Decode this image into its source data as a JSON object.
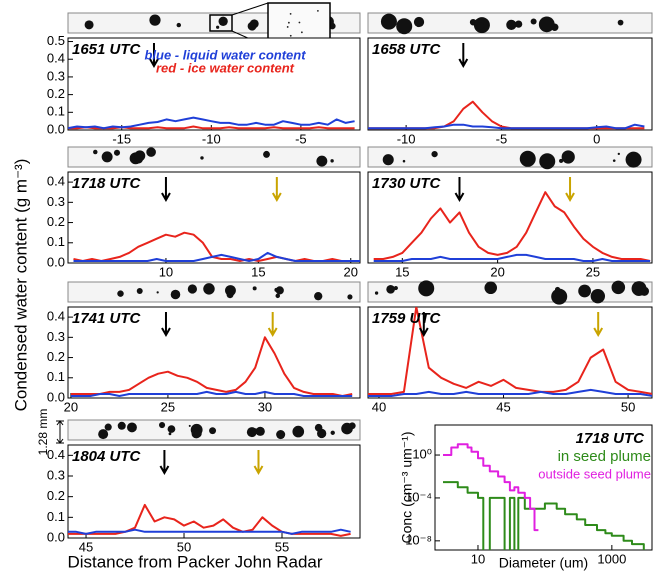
{
  "y_label": "Condensed water content (g m⁻³)",
  "x_label": "Distance from Packer John Radar",
  "scale_label": "1.28 mm",
  "chart_data": [
    {
      "type": "line",
      "title": "1651 UTC",
      "xlim": [
        -18,
        -1.7
      ],
      "ylim": [
        0,
        0.52
      ],
      "xticks": [
        -15,
        -10,
        -5
      ],
      "yticks": [
        {
          "value": 0,
          "label": "0.0"
        },
        0.1,
        0.2,
        0.3,
        0.4,
        0.5
      ],
      "annotations": [
        {
          "text": "blue - liquid water content",
          "color": "#1f3fd8"
        },
        {
          "text": "red  -  ice water content",
          "color": "#e8241c"
        }
      ],
      "markers": [
        {
          "x": -13.2,
          "color": "#000000"
        }
      ],
      "x": [
        -18,
        -17.5,
        -17,
        -16.5,
        -16,
        -15.5,
        -15,
        -14.5,
        -14,
        -13.5,
        -13,
        -12.5,
        -12,
        -11.5,
        -11,
        -10.5,
        -10,
        -9.5,
        -9,
        -8.5,
        -8,
        -7.5,
        -7,
        -6.5,
        -6,
        -5.5,
        -5,
        -4.5,
        -4,
        -3.5,
        -3,
        -2.5,
        -2
      ],
      "series": [
        {
          "color": "#e8241c",
          "values": [
            0.01,
            0.01,
            0.015,
            0.01,
            0.01,
            0.01,
            0.015,
            0.01,
            0.01,
            0.01,
            0.015,
            0.01,
            0.01,
            0.01,
            0.02,
            0.01,
            0.01,
            0.01,
            0.015,
            0.01,
            0.01,
            0.01,
            0.01,
            0.015,
            0.01,
            0.01,
            0.01,
            0.01,
            0.015,
            0.01,
            0.01,
            0.01,
            0.01
          ]
        },
        {
          "color": "#1f3fd8",
          "values": [
            0.01,
            0.02,
            0.015,
            0.02,
            0.01,
            0.02,
            0.015,
            0.02,
            0.03,
            0.04,
            0.045,
            0.06,
            0.05,
            0.06,
            0.07,
            0.06,
            0.05,
            0.04,
            0.04,
            0.03,
            0.03,
            0.04,
            0.03,
            0.03,
            0.05,
            0.04,
            0.03,
            0.03,
            0.04,
            0.03,
            0.06,
            0.04,
            0.05
          ]
        }
      ]
    },
    {
      "type": "line",
      "title": "1658 UTC",
      "xlim": [
        -12,
        2.9
      ],
      "ylim": [
        0,
        0.52
      ],
      "xticks": [
        -10,
        -5,
        0
      ],
      "markers": [
        {
          "x": -7,
          "color": "#000000"
        }
      ],
      "x": [
        -12,
        -11.5,
        -11,
        -10.5,
        -10,
        -9.5,
        -9,
        -8.5,
        -8,
        -7.5,
        -7,
        -6.5,
        -6,
        -5.5,
        -5,
        -4.5,
        -4,
        -3.5,
        -3,
        -2.5,
        -2,
        -1.5,
        -1,
        -0.5,
        0,
        0.5,
        1,
        1.5,
        2,
        2.5
      ],
      "series": [
        {
          "color": "#e8241c",
          "values": [
            0.01,
            0.01,
            0.01,
            0.01,
            0.01,
            0.01,
            0.01,
            0.01,
            0.02,
            0.05,
            0.12,
            0.16,
            0.1,
            0.05,
            0.02,
            0.01,
            0.01,
            0.01,
            0.01,
            0.01,
            0.01,
            0.01,
            0.01,
            0.01,
            0.01,
            0.01,
            0.01,
            0.01,
            0.01,
            0.01
          ]
        },
        {
          "color": "#1f3fd8",
          "values": [
            0.01,
            0.01,
            0.01,
            0.01,
            0.01,
            0.01,
            0.01,
            0.015,
            0.02,
            0.03,
            0.03,
            0.02,
            0.02,
            0.015,
            0.01,
            0.01,
            0.01,
            0.01,
            0.01,
            0.01,
            0.01,
            0.01,
            0.01,
            0.01,
            0.015,
            0.02,
            0.01,
            0.01,
            0.03,
            0.02
          ]
        }
      ]
    },
    {
      "type": "line",
      "title": "1718 UTC",
      "xlim": [
        4.7,
        20.5
      ],
      "ylim": [
        0,
        0.45
      ],
      "xticks": [
        10,
        15,
        20
      ],
      "yticks": [
        {
          "value": 0,
          "label": "0.0"
        },
        0.1,
        0.2,
        0.3,
        0.4
      ],
      "markers": [
        {
          "x": 10,
          "color": "#000000"
        },
        {
          "x": 16,
          "color": "#c9a400"
        }
      ],
      "x": [
        5,
        5.5,
        6,
        6.5,
        7,
        7.5,
        8,
        8.5,
        9,
        9.5,
        10,
        10.5,
        11,
        11.5,
        12,
        12.5,
        13,
        13.5,
        14,
        14.5,
        15,
        15.5,
        16,
        16.5,
        17,
        17.5,
        18,
        18.5,
        19,
        19.5,
        20,
        20.5
      ],
      "series": [
        {
          "color": "#e8241c",
          "values": [
            0.02,
            0.01,
            0.02,
            0.01,
            0.02,
            0.03,
            0.05,
            0.08,
            0.1,
            0.12,
            0.14,
            0.13,
            0.15,
            0.14,
            0.1,
            0.03,
            0.02,
            0.02,
            0.01,
            0.02,
            0.01,
            0.02,
            0.03,
            0.02,
            0.01,
            0.02,
            0.01,
            0.01,
            0.02,
            0.01,
            0.01,
            0.01
          ]
        },
        {
          "color": "#1f3fd8",
          "values": [
            0.01,
            0.01,
            0.01,
            0.01,
            0.01,
            0.01,
            0.01,
            0.01,
            0.01,
            0.02,
            0.01,
            0.01,
            0.01,
            0.01,
            0.02,
            0.03,
            0.04,
            0.03,
            0.02,
            0.01,
            0.02,
            0.05,
            0.03,
            0.02,
            0.01,
            0.01,
            0.01,
            0.01,
            0.01,
            0.01,
            0.01,
            0.01
          ]
        }
      ]
    },
    {
      "type": "line",
      "title": "1730 UTC",
      "xlim": [
        13.2,
        28.1
      ],
      "ylim": [
        0,
        0.45
      ],
      "xticks": [
        15,
        20,
        25
      ],
      "markers": [
        {
          "x": 18,
          "color": "#000000"
        },
        {
          "x": 23.8,
          "color": "#c9a400"
        }
      ],
      "x": [
        13.5,
        14,
        14.5,
        15,
        15.5,
        16,
        16.5,
        17,
        17.5,
        18,
        18.5,
        19,
        19.5,
        20,
        20.5,
        21,
        21.5,
        22,
        22.5,
        23,
        23.5,
        24,
        24.5,
        25,
        25.5,
        26,
        26.5,
        27,
        27.5,
        28
      ],
      "series": [
        {
          "color": "#e8241c",
          "values": [
            0.02,
            0.02,
            0.03,
            0.05,
            0.1,
            0.15,
            0.22,
            0.27,
            0.2,
            0.25,
            0.15,
            0.08,
            0.05,
            0.04,
            0.05,
            0.08,
            0.15,
            0.25,
            0.35,
            0.28,
            0.25,
            0.18,
            0.12,
            0.08,
            0.05,
            0.03,
            0.02,
            0.02,
            0.02,
            0.01
          ]
        },
        {
          "color": "#1f3fd8",
          "values": [
            0.01,
            0.01,
            0.01,
            0.01,
            0.02,
            0.02,
            0.02,
            0.03,
            0.02,
            0.02,
            0.02,
            0.02,
            0.02,
            0.02,
            0.03,
            0.04,
            0.04,
            0.03,
            0.02,
            0.02,
            0.02,
            0.02,
            0.01,
            0.01,
            0.02,
            0.01,
            0.01,
            0.01,
            0.01,
            0.01
          ]
        }
      ]
    },
    {
      "type": "line",
      "title": "1741 UTC",
      "xlim": [
        19.85,
        34.9
      ],
      "ylim": [
        0,
        0.45
      ],
      "xticks": [
        20,
        25,
        30
      ],
      "yticks": [
        {
          "value": 0,
          "label": "0.0"
        },
        0.1,
        0.2,
        0.3,
        0.4
      ],
      "markers": [
        {
          "x": 24.9,
          "color": "#000000"
        },
        {
          "x": 30.4,
          "color": "#c9a400"
        }
      ],
      "x": [
        20,
        20.5,
        21,
        21.5,
        22,
        22.5,
        23,
        23.5,
        24,
        24.5,
        25,
        25.5,
        26,
        26.5,
        27,
        27.5,
        28,
        28.5,
        29,
        29.5,
        30,
        30.5,
        31,
        31.5,
        32,
        32.5,
        33,
        33.5,
        34,
        34.5
      ],
      "series": [
        {
          "color": "#e8241c",
          "values": [
            0.02,
            0.02,
            0.02,
            0.02,
            0.03,
            0.03,
            0.04,
            0.07,
            0.1,
            0.12,
            0.13,
            0.11,
            0.1,
            0.08,
            0.05,
            0.04,
            0.03,
            0.04,
            0.08,
            0.15,
            0.3,
            0.22,
            0.12,
            0.05,
            0.03,
            0.02,
            0.02,
            0.02,
            0.01,
            0.02
          ]
        },
        {
          "color": "#1f3fd8",
          "values": [
            0.01,
            0.01,
            0.01,
            0.02,
            0.02,
            0.01,
            0.02,
            0.02,
            0.02,
            0.02,
            0.02,
            0.02,
            0.02,
            0.02,
            0.03,
            0.02,
            0.02,
            0.03,
            0.02,
            0.02,
            0.03,
            0.02,
            0.02,
            0.02,
            0.01,
            0.01,
            0.01,
            0.01,
            0.01,
            0.01
          ]
        }
      ]
    },
    {
      "type": "line",
      "title": "1759 UTC",
      "xlim": [
        39.56,
        50.96
      ],
      "ylim": [
        0,
        0.45
      ],
      "xticks": [
        40,
        45,
        50
      ],
      "markers": [
        {
          "x": 41.8,
          "color": "#000000"
        },
        {
          "x": 48.8,
          "color": "#c9a400"
        }
      ],
      "x": [
        39.5,
        40,
        40.5,
        41,
        41.5,
        42,
        42.5,
        43,
        43.5,
        44,
        44.5,
        45,
        45.5,
        46,
        46.5,
        47,
        47.5,
        48,
        48.5,
        49,
        49.5,
        50,
        50.5,
        51
      ],
      "series": [
        {
          "color": "#e8241c",
          "values": [
            0.02,
            0.02,
            0.02,
            0.03,
            0.45,
            0.15,
            0.1,
            0.07,
            0.05,
            0.08,
            0.06,
            0.09,
            0.05,
            0.04,
            0.03,
            0.03,
            0.04,
            0.08,
            0.2,
            0.24,
            0.08,
            0.04,
            0.03,
            0.02
          ]
        },
        {
          "color": "#1f3fd8",
          "values": [
            0.01,
            0.01,
            0.01,
            0.02,
            0.02,
            0.03,
            0.02,
            0.02,
            0.03,
            0.02,
            0.02,
            0.02,
            0.02,
            0.02,
            0.03,
            0.02,
            0.02,
            0.03,
            0.04,
            0.03,
            0.02,
            0.02,
            0.02,
            0.01
          ]
        }
      ]
    },
    {
      "type": "line",
      "title": "1804 UTC",
      "xlim": [
        44.08,
        58.98
      ],
      "ylim": [
        0,
        0.45
      ],
      "xticks": [
        45,
        50,
        55
      ],
      "yticks": [
        {
          "value": 0,
          "label": "0.0"
        },
        0.1,
        0.2,
        0.3,
        0.4
      ],
      "markers": [
        {
          "x": 49,
          "color": "#000000"
        },
        {
          "x": 53.8,
          "color": "#c9a400"
        }
      ],
      "x": [
        44,
        44.5,
        45,
        45.5,
        46,
        46.5,
        47,
        47.5,
        48,
        48.5,
        49,
        49.5,
        50,
        50.5,
        51,
        51.5,
        52,
        52.5,
        53,
        53.5,
        54,
        54.5,
        55,
        55.5,
        56,
        56.5,
        57,
        57.5,
        58,
        58.5
      ],
      "series": [
        {
          "color": "#e8241c",
          "values": [
            0.02,
            0.02,
            0.02,
            0.02,
            0.02,
            0.02,
            0.03,
            0.05,
            0.16,
            0.08,
            0.1,
            0.09,
            0.06,
            0.08,
            0.05,
            0.06,
            0.09,
            0.05,
            0.03,
            0.04,
            0.1,
            0.06,
            0.03,
            0.02,
            0.02,
            0.02,
            0.02,
            0.02,
            0.01,
            0.02
          ]
        },
        {
          "color": "#1f3fd8",
          "values": [
            0.03,
            0.03,
            0.02,
            0.03,
            0.03,
            0.03,
            0.03,
            0.04,
            0.03,
            0.03,
            0.03,
            0.03,
            0.03,
            0.03,
            0.03,
            0.03,
            0.03,
            0.03,
            0.03,
            0.03,
            0.03,
            0.03,
            0.03,
            0.02,
            0.03,
            0.03,
            0.03,
            0.03,
            0.04,
            0.03
          ]
        }
      ]
    },
    {
      "type": "step",
      "title": "1718 UTC",
      "x_label": "Diameter (um)",
      "y_label": "Conc (cm⁻³ um⁻¹)",
      "xlog": true,
      "ylog": true,
      "xlim": [
        2.28,
        3980
      ],
      "ylim": [
        1.4e-09,
        630
      ],
      "xticks": [
        10,
        1000
      ],
      "yticks": [
        {
          "value": 1,
          "label": "10⁰"
        },
        {
          "value": 0.0001,
          "label": "10⁻⁴"
        },
        {
          "value": 1e-08,
          "label": "10⁻⁸"
        }
      ],
      "x": [
        3,
        4,
        5,
        6,
        7,
        8,
        10,
        12,
        15,
        20,
        25,
        30,
        35,
        40,
        50,
        60,
        70,
        80,
        100,
        150,
        200,
        300,
        400,
        600,
        800,
        1000,
        1500,
        2000,
        3000,
        4000
      ],
      "series": [
        {
          "name": "in seed plume",
          "color": "#2e8b1a",
          "values": [
            0.003,
            0.003,
            0.001,
            0.001,
            0.0003,
            0.0003,
            0.0001,
            1e-09,
            0.0001,
            0.0001,
            1e-09,
            0.0001,
            1e-09,
            0.0001,
            1e-05,
            1e-05,
            1e-05,
            1e-05,
            3e-05,
            1e-05,
            3e-06,
            1e-06,
            3e-07,
            1e-07,
            5e-08,
            3e-08,
            1e-08,
            5e-09,
            1e-09,
            1e-09
          ]
        },
        {
          "name": "outside seed plume",
          "color": "#e020e0",
          "values": [
            1,
            5,
            10,
            10,
            5,
            2,
            0.5,
            0.1,
            0.03,
            0.01,
            0.003,
            0.0005,
            0.001,
            0.0003,
            0.0001,
            1e-05,
            1e-07,
            1e-07,
            null,
            null,
            null,
            null,
            null,
            null,
            null,
            null,
            null,
            null,
            null,
            null
          ]
        }
      ]
    }
  ]
}
